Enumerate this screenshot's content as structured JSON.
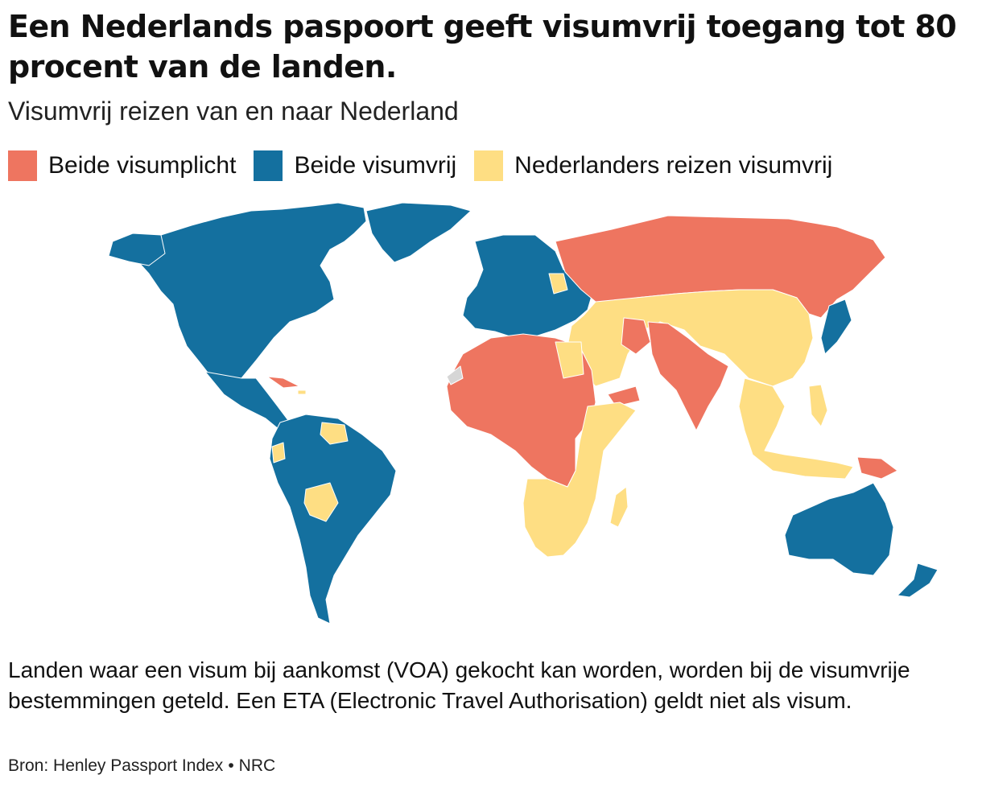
{
  "header": {
    "title": "Een Nederlands paspoort geeft visumvrij toegang tot 80 procent van de landen.",
    "subtitle": "Visumvrij reizen van en naar Nederland"
  },
  "legend": {
    "items": [
      {
        "label": "Beide visumplicht",
        "color": "#ee7560"
      },
      {
        "label": "Beide visumvrij",
        "color": "#14709f"
      },
      {
        "label": "Nederlanders reizen visumvrij",
        "color": "#fede83"
      }
    ]
  },
  "map": {
    "categories": {
      "visumplicht": "#ee7560",
      "visumvrij": "#14709f",
      "alleen_nl_visumvrij": "#fede83",
      "geen_data": "#d6d6d6"
    },
    "regions": [
      {
        "name": "North America",
        "category": "visumvrij"
      },
      {
        "name": "Greenland",
        "category": "visumvrij"
      },
      {
        "name": "Central America",
        "category": "visumvrij"
      },
      {
        "name": "South America",
        "category": "visumvrij"
      },
      {
        "name": "Guyana/Suriname",
        "category": "alleen_nl_visumvrij"
      },
      {
        "name": "Bolivia",
        "category": "alleen_nl_visumvrij"
      },
      {
        "name": "Cuba",
        "category": "visumplicht"
      },
      {
        "name": "Europe",
        "category": "visumvrij"
      },
      {
        "name": "Russia",
        "category": "visumplicht"
      },
      {
        "name": "Central Asia / China / Middle East",
        "category": "alleen_nl_visumvrij"
      },
      {
        "name": "North & West Africa",
        "category": "visumplicht"
      },
      {
        "name": "East & Southern Africa",
        "category": "alleen_nl_visumvrij"
      },
      {
        "name": "South Asia",
        "category": "visumplicht"
      },
      {
        "name": "Southeast Asia",
        "category": "alleen_nl_visumvrij"
      },
      {
        "name": "Japan / Korea",
        "category": "visumvrij"
      },
      {
        "name": "Australia / New Zealand",
        "category": "visumvrij"
      },
      {
        "name": "Papua New Guinea",
        "category": "visumplicht"
      }
    ]
  },
  "footnote": {
    "text": "Landen waar een visum bij aankomst (VOA) gekocht kan worden, worden bij de visumvrije bestemmingen geteld. Een ETA (Electronic Travel Authorisation) geldt niet als visum."
  },
  "source": {
    "text": "Bron: Henley Passport Index",
    "separator": "•",
    "credit": "NRC"
  }
}
